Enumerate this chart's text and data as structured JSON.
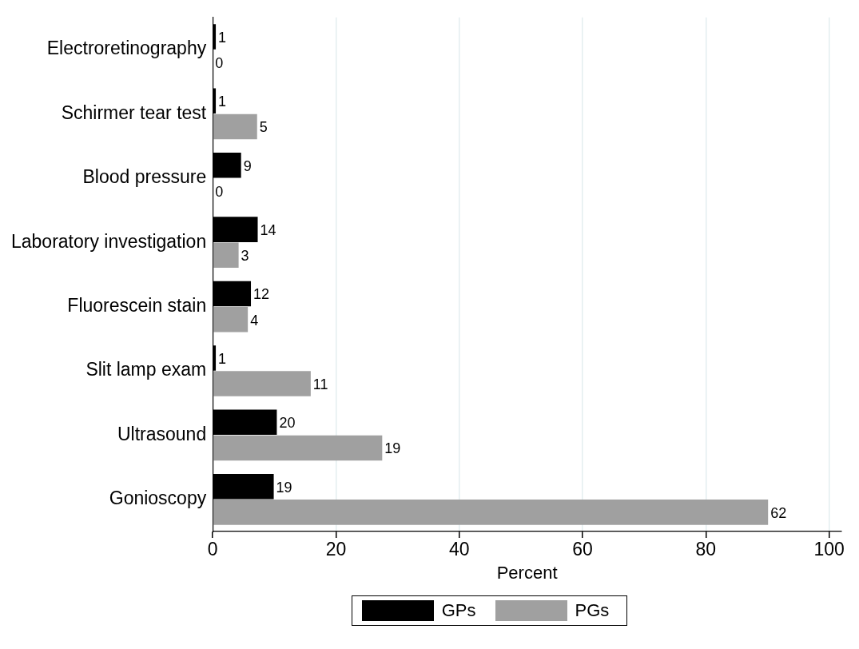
{
  "chart_data": {
    "type": "bar",
    "orientation": "horizontal",
    "xlabel": "Percent",
    "categories": [
      "Electroretinography",
      "Schirmer tear test",
      "Blood pressure",
      "Laboratory investigation",
      "Fluorescein stain",
      "Slit lamp exam",
      "Ultrasound",
      "Gonioscopy"
    ],
    "series": [
      {
        "name": "GPs",
        "color": "#000000",
        "values": [
          0.5,
          0.5,
          4.6,
          7.3,
          6.2,
          0.5,
          10.4,
          9.9
        ]
      },
      {
        "name": "PGs",
        "color": "#a0a0a0",
        "values": [
          0,
          7.2,
          0,
          4.2,
          5.7,
          15.9,
          27.5,
          90.1
        ]
      }
    ],
    "annotations": [
      {
        "text": "1",
        "x": 0.5,
        "y": "Electroretinography"
      },
      {
        "text": "0",
        "x": 0,
        "y": "Electroretinography"
      },
      {
        "text": "1",
        "x": 0.5,
        "y": "Schirmer tear test"
      },
      {
        "text": "5",
        "x": 7.2,
        "y": "Schirmer tear test"
      },
      {
        "text": "9",
        "x": 4.6,
        "y": "Blood pressure"
      },
      {
        "text": "0",
        "x": 0,
        "y": "Blood pressure"
      },
      {
        "text": "14",
        "x": 7.3,
        "y": "Laboratory investigation"
      },
      {
        "text": "3",
        "x": 4.2,
        "y": "Laboratory investigation"
      },
      {
        "text": "12",
        "x": 6.2,
        "y": "Fluorescein stain"
      },
      {
        "text": "4",
        "x": 5.7,
        "y": "Fluorescein stain"
      },
      {
        "text": "1",
        "x": 0.5,
        "y": "Slit lamp exam"
      },
      {
        "text": "11",
        "x": 15.9,
        "y": "Slit lamp exam"
      },
      {
        "text": "20",
        "x": 10.4,
        "y": "Ultrasound"
      },
      {
        "text": "19",
        "x": 27.5,
        "y": "Ultrasound"
      },
      {
        "text": "19",
        "x": 9.9,
        "y": "Gonioscopy"
      },
      {
        "text": "62",
        "x": 90.1,
        "y": "Gonioscopy"
      }
    ],
    "xlim": [
      0,
      102
    ],
    "xticks": [
      0,
      20,
      40,
      60,
      80,
      100
    ],
    "grid": "x",
    "legend": "bottom"
  }
}
